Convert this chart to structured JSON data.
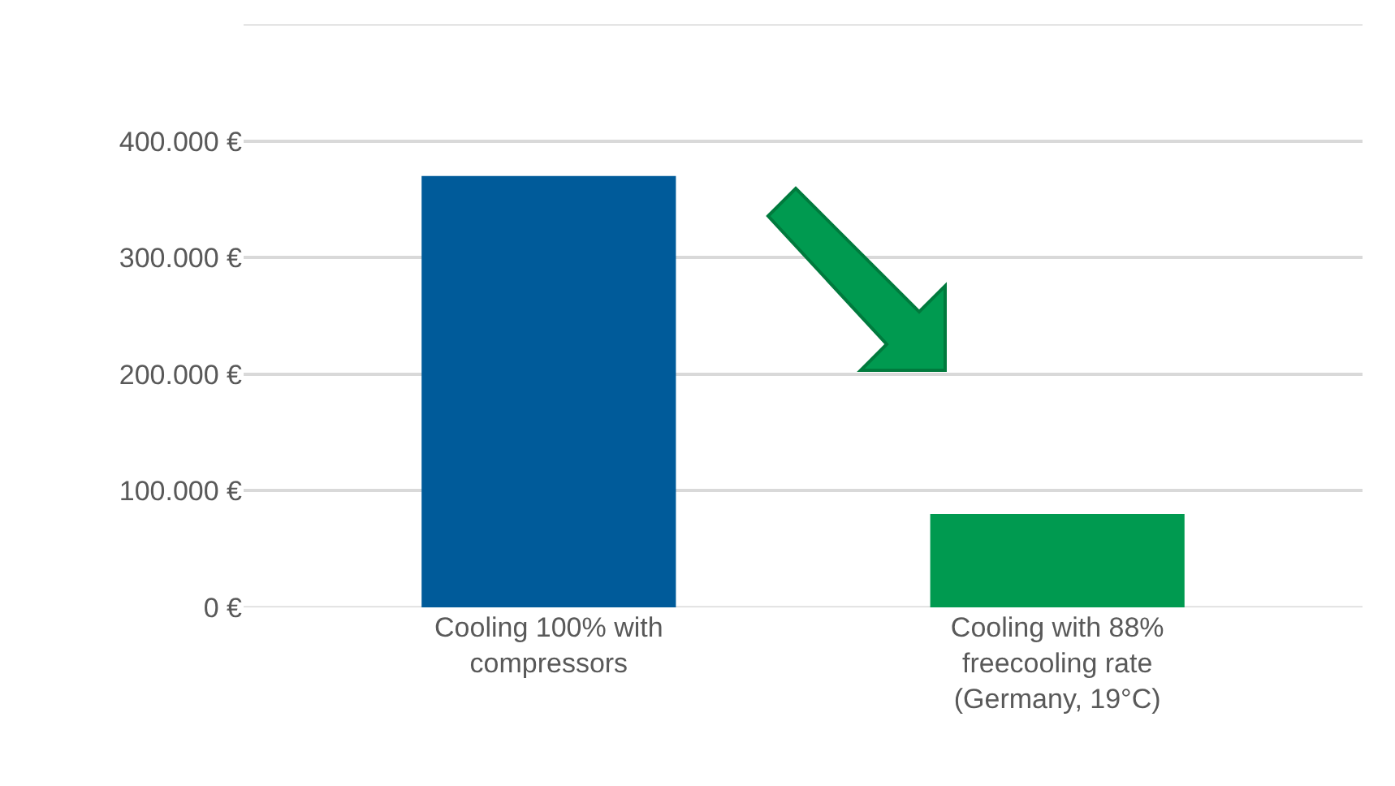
{
  "chart_data": {
    "type": "bar",
    "categories": [
      "Cooling 100% with compressors",
      "Cooling with 88% freecooling rate (Germany, 19°C)"
    ],
    "values": [
      370000,
      80000
    ],
    "colors": [
      "#005b9a",
      "#009a50"
    ],
    "ylim": [
      0,
      500000
    ],
    "yticks": [
      {
        "value": 0,
        "label": "0 €"
      },
      {
        "value": 100000,
        "label": "100.000 €"
      },
      {
        "value": 200000,
        "label": "200.000 €"
      },
      {
        "value": 300000,
        "label": "300.000 €"
      },
      {
        "value": 400000,
        "label": "400.000 €"
      },
      {
        "value": 500000,
        "label": null
      }
    ],
    "grid": "y"
  }
}
